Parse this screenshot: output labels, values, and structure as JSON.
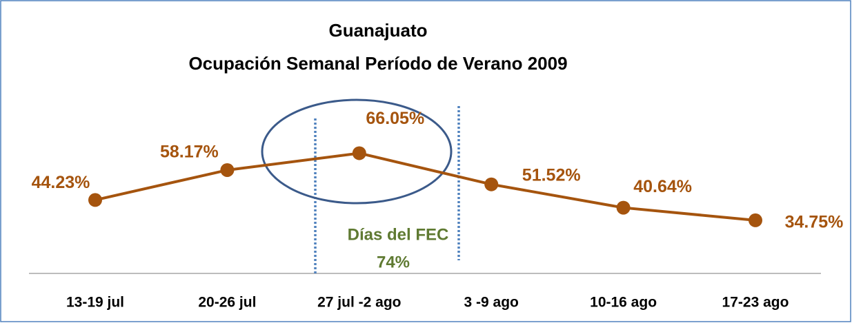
{
  "chart_data": {
    "type": "line",
    "title": [
      "Guanajuato",
      "Ocupación Semanal Período de Verano 2009"
    ],
    "categories": [
      "13-19 jul",
      "20-26 jul",
      "27 jul -2 ago",
      "3 -9 ago",
      "10-16 ago",
      "17-23 ago"
    ],
    "values": [
      44.23,
      58.17,
      66.05,
      51.52,
      40.64,
      34.75
    ],
    "value_labels": [
      "44.23%",
      "58.17%",
      "66.05%",
      "51.52%",
      "40.64%",
      "34.75%"
    ],
    "color": "#a5540e",
    "ylim": [
      10,
      80
    ],
    "annotations": [
      "Días del FEC",
      "74%"
    ]
  }
}
